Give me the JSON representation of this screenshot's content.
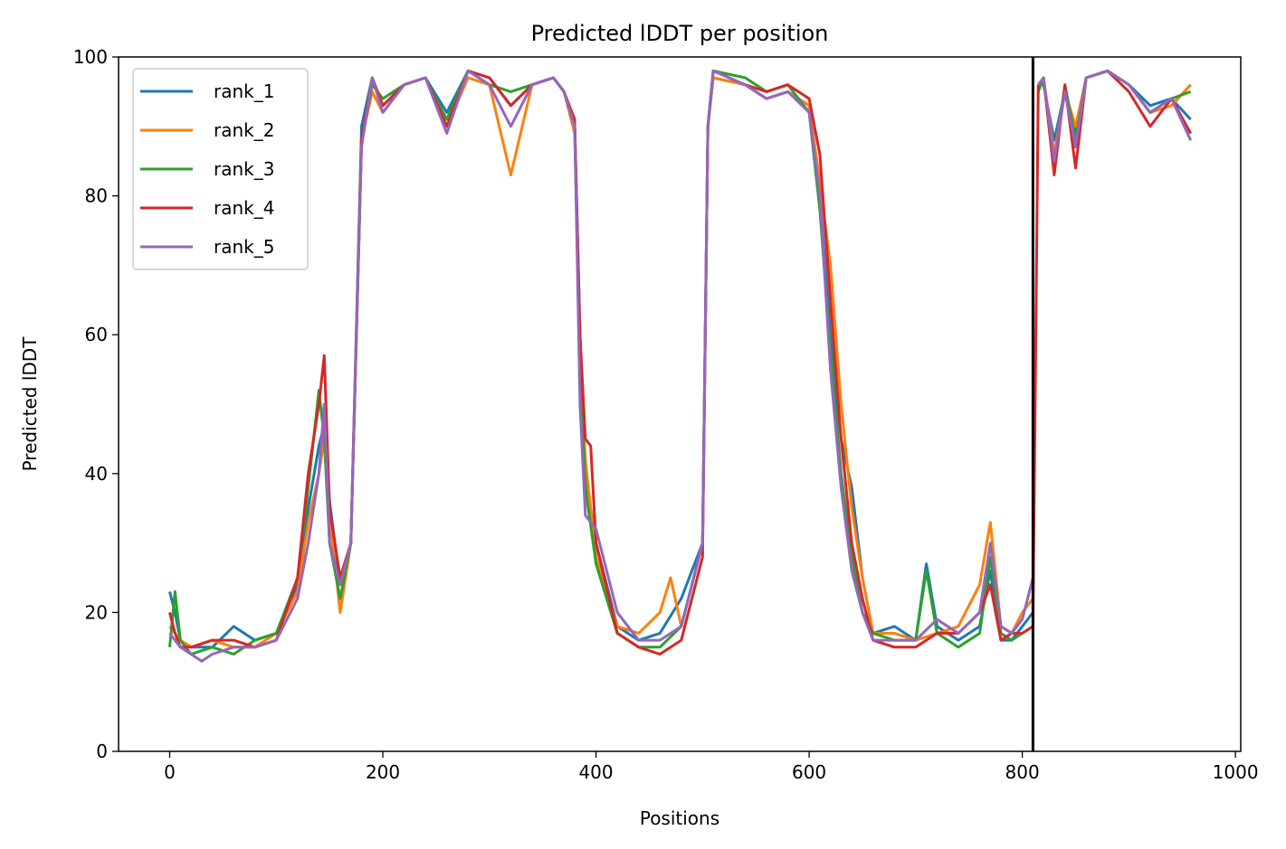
{
  "chart_data": {
    "type": "line",
    "title": "Predicted lDDT per position",
    "xlabel": "Positions",
    "ylabel": "Predicted lDDT",
    "xlim": [
      -48,
      1005
    ],
    "ylim": [
      0,
      100
    ],
    "xticks": [
      0,
      200,
      400,
      600,
      800,
      1000
    ],
    "yticks": [
      0,
      20,
      40,
      60,
      80,
      100
    ],
    "xtick_labels": [
      "0",
      "200",
      "400",
      "600",
      "800",
      "1000"
    ],
    "ytick_labels": [
      "0",
      "20",
      "40",
      "60",
      "80",
      "100"
    ],
    "grid": false,
    "legend_position": "top-left",
    "chain_break_x": 810,
    "series": [
      {
        "name": "rank_1",
        "color": "#1f77b4",
        "x": [
          0,
          5,
          10,
          20,
          40,
          60,
          80,
          100,
          120,
          130,
          140,
          145,
          150,
          160,
          170,
          180,
          190,
          200,
          220,
          240,
          260,
          280,
          300,
          320,
          340,
          360,
          370,
          380,
          385,
          390,
          400,
          420,
          440,
          460,
          480,
          500,
          505,
          510,
          540,
          560,
          580,
          600,
          610,
          620,
          630,
          640,
          650,
          660,
          680,
          700,
          710,
          720,
          740,
          760,
          770,
          780,
          790,
          800,
          810,
          815,
          820,
          830,
          840,
          850,
          860,
          880,
          900,
          920,
          940,
          958
        ],
        "y": [
          23,
          20,
          16,
          15,
          15,
          18,
          16,
          17,
          24,
          35,
          44,
          47,
          36,
          24,
          30,
          90,
          97,
          93,
          96,
          97,
          92,
          98,
          97,
          93,
          96,
          97,
          95,
          90,
          60,
          40,
          30,
          18,
          16,
          17,
          22,
          30,
          90,
          97,
          96,
          94,
          95,
          93,
          80,
          60,
          45,
          38,
          25,
          17,
          18,
          16,
          27,
          18,
          16,
          18,
          26,
          16,
          16,
          18,
          20,
          96,
          96,
          88,
          95,
          89,
          97,
          98,
          96,
          93,
          94,
          91
        ],
        "break_after_index": 58
      },
      {
        "name": "rank_2",
        "color": "#ff7f0e",
        "x": [
          0,
          5,
          10,
          20,
          40,
          60,
          80,
          100,
          120,
          130,
          140,
          145,
          150,
          160,
          170,
          180,
          190,
          200,
          220,
          240,
          260,
          280,
          300,
          320,
          340,
          360,
          370,
          380,
          385,
          390,
          400,
          420,
          440,
          460,
          470,
          480,
          500,
          505,
          510,
          540,
          560,
          580,
          600,
          610,
          620,
          630,
          640,
          650,
          660,
          680,
          700,
          720,
          740,
          760,
          770,
          780,
          790,
          800,
          810,
          815,
          820,
          830,
          840,
          850,
          860,
          880,
          900,
          920,
          940,
          958
        ],
        "y": [
          18,
          17,
          16,
          15,
          16,
          15,
          15,
          17,
          23,
          33,
          40,
          45,
          34,
          20,
          30,
          88,
          95,
          92,
          96,
          97,
          90,
          97,
          96,
          83,
          96,
          97,
          95,
          89,
          58,
          42,
          28,
          18,
          17,
          20,
          25,
          18,
          30,
          90,
          97,
          96,
          94,
          95,
          93,
          82,
          70,
          50,
          35,
          25,
          17,
          17,
          16,
          17,
          18,
          24,
          33,
          18,
          17,
          20,
          22,
          96,
          97,
          86,
          95,
          90,
          97,
          98,
          96,
          92,
          93,
          96
        ],
        "break_after_index": 58
      },
      {
        "name": "rank_3",
        "color": "#2ca02c",
        "x": [
          0,
          5,
          10,
          20,
          40,
          60,
          80,
          100,
          120,
          130,
          140,
          145,
          150,
          160,
          170,
          180,
          190,
          200,
          220,
          240,
          260,
          280,
          300,
          320,
          340,
          360,
          370,
          380,
          385,
          390,
          400,
          420,
          440,
          460,
          480,
          500,
          505,
          510,
          540,
          560,
          580,
          600,
          610,
          620,
          630,
          640,
          650,
          660,
          680,
          700,
          710,
          720,
          740,
          760,
          770,
          780,
          790,
          800,
          810,
          815,
          820,
          830,
          840,
          850,
          860,
          880,
          900,
          920,
          940,
          958
        ],
        "y": [
          15,
          23,
          16,
          14,
          15,
          14,
          16,
          17,
          25,
          38,
          52,
          45,
          30,
          22,
          30,
          88,
          96,
          94,
          96,
          97,
          91,
          98,
          96,
          95,
          96,
          97,
          95,
          90,
          55,
          38,
          27,
          17,
          15,
          15,
          18,
          30,
          90,
          98,
          97,
          95,
          96,
          92,
          78,
          58,
          40,
          28,
          20,
          17,
          16,
          16,
          26,
          17,
          15,
          17,
          28,
          17,
          16,
          17,
          18,
          95,
          97,
          84,
          96,
          88,
          97,
          98,
          96,
          92,
          94,
          95
        ],
        "break_after_index": 58
      },
      {
        "name": "rank_4",
        "color": "#d62728",
        "x": [
          0,
          5,
          10,
          20,
          40,
          60,
          80,
          100,
          120,
          130,
          140,
          145,
          150,
          160,
          170,
          180,
          190,
          200,
          220,
          240,
          260,
          280,
          300,
          320,
          340,
          360,
          370,
          380,
          385,
          390,
          395,
          400,
          420,
          440,
          460,
          480,
          500,
          505,
          510,
          540,
          560,
          580,
          600,
          610,
          620,
          630,
          640,
          650,
          660,
          680,
          700,
          720,
          740,
          760,
          770,
          780,
          790,
          800,
          810,
          815,
          820,
          830,
          840,
          850,
          860,
          880,
          900,
          920,
          940,
          958
        ],
        "y": [
          20,
          17,
          15,
          15,
          16,
          16,
          15,
          16,
          25,
          40,
          50,
          57,
          35,
          25,
          30,
          88,
          97,
          93,
          96,
          97,
          90,
          98,
          97,
          93,
          96,
          97,
          95,
          91,
          60,
          45,
          44,
          30,
          17,
          15,
          14,
          16,
          28,
          90,
          98,
          96,
          95,
          96,
          94,
          86,
          65,
          45,
          30,
          22,
          16,
          15,
          15,
          17,
          17,
          20,
          24,
          16,
          17,
          17,
          18,
          96,
          97,
          83,
          96,
          84,
          97,
          98,
          95,
          90,
          94,
          89
        ],
        "break_after_index": 59
      },
      {
        "name": "rank_5",
        "color": "#9467bd",
        "x": [
          0,
          5,
          10,
          20,
          30,
          40,
          60,
          80,
          100,
          120,
          130,
          140,
          145,
          150,
          160,
          170,
          180,
          190,
          200,
          220,
          240,
          260,
          280,
          300,
          320,
          340,
          360,
          370,
          380,
          385,
          390,
          400,
          420,
          440,
          460,
          480,
          500,
          505,
          510,
          540,
          560,
          580,
          600,
          610,
          620,
          630,
          640,
          650,
          660,
          680,
          700,
          720,
          740,
          760,
          770,
          780,
          790,
          800,
          810,
          815,
          820,
          830,
          840,
          850,
          860,
          880,
          900,
          920,
          940,
          958
        ],
        "y": [
          17,
          16,
          15,
          14,
          13,
          14,
          15,
          15,
          16,
          22,
          30,
          40,
          50,
          30,
          24,
          30,
          87,
          97,
          92,
          96,
          97,
          89,
          98,
          96,
          90,
          96,
          97,
          95,
          90,
          50,
          34,
          32,
          20,
          16,
          16,
          18,
          30,
          90,
          98,
          96,
          94,
          95,
          92,
          80,
          55,
          38,
          26,
          20,
          16,
          16,
          16,
          19,
          17,
          20,
          30,
          18,
          17,
          19,
          25,
          96,
          97,
          85,
          95,
          87,
          97,
          98,
          96,
          92,
          94,
          88
        ],
        "break_after_index": 58
      }
    ]
  }
}
